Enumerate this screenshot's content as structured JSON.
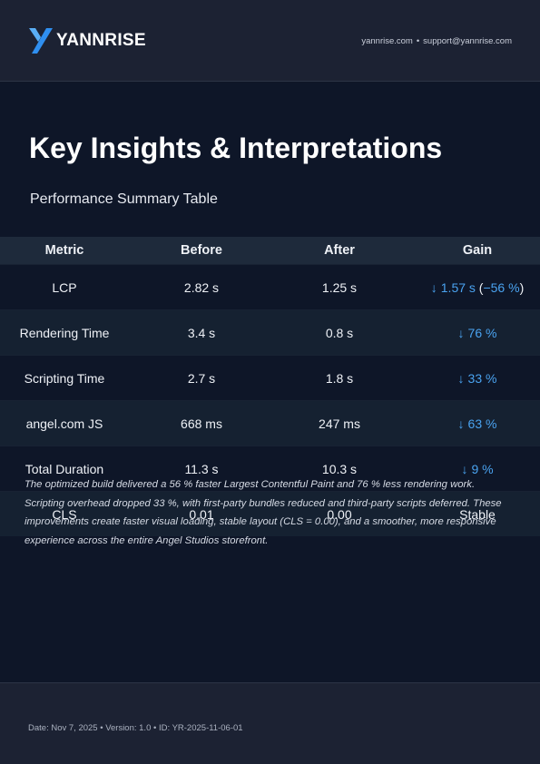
{
  "brand": {
    "logo_icon": "yannrise-y-mark",
    "name": "YANNRISE",
    "accent_color": "#2f8ff0"
  },
  "header": {
    "website": "yannrise.com",
    "separator": "•",
    "email": "support@yannrise.com"
  },
  "page": {
    "title": "Key Insights & Interpretations",
    "subtitle": "Performance Summary Table"
  },
  "table": {
    "columns": [
      "Metric",
      "Before",
      "After",
      "Gain"
    ],
    "rows": [
      {
        "metric": "LCP",
        "before": "2.82 s",
        "after": "1.25 s",
        "gain_arrow": "↓",
        "gain": "1.57 s",
        "gain_extra_open": "(",
        "gain_extra": "−56 %",
        "gain_extra_close": ")"
      },
      {
        "metric": "Rendering Time",
        "before": "3.4 s",
        "after": "0.8 s",
        "gain_arrow": "↓",
        "gain": "76 %"
      },
      {
        "metric": "Scripting Time",
        "before": "2.7 s",
        "after": "1.8 s",
        "gain_arrow": "↓",
        "gain": "33 %"
      },
      {
        "metric": "angel.com JS",
        "before": "668 ms",
        "after": "247 ms",
        "gain_arrow": "↓",
        "gain": "63 %"
      },
      {
        "metric": "Total Duration",
        "before": "11.3 s",
        "after": "10.3 s",
        "gain_arrow": "↓",
        "gain": "9 %"
      },
      {
        "metric": "CLS",
        "before": "0.01",
        "after": "0.00",
        "gain_text": "Stable"
      }
    ],
    "gain_color": "#4aa3f0"
  },
  "summary": "The optimized build delivered a 56 % faster Largest Contentful Paint and 76 % less rendering work. Scripting overhead dropped 33 %, with first-party bundles reduced and third-party scripts deferred. These improvements create faster visual loading, stable layout (CLS = 0.00), and a smoother, more responsive experience across the entire Angel Studios storefront.",
  "footer": {
    "date": "Date: Nov 7, 2025",
    "version": "Version: 1.0",
    "id": "ID: YR-2025-11-06-01",
    "separator": "•"
  }
}
